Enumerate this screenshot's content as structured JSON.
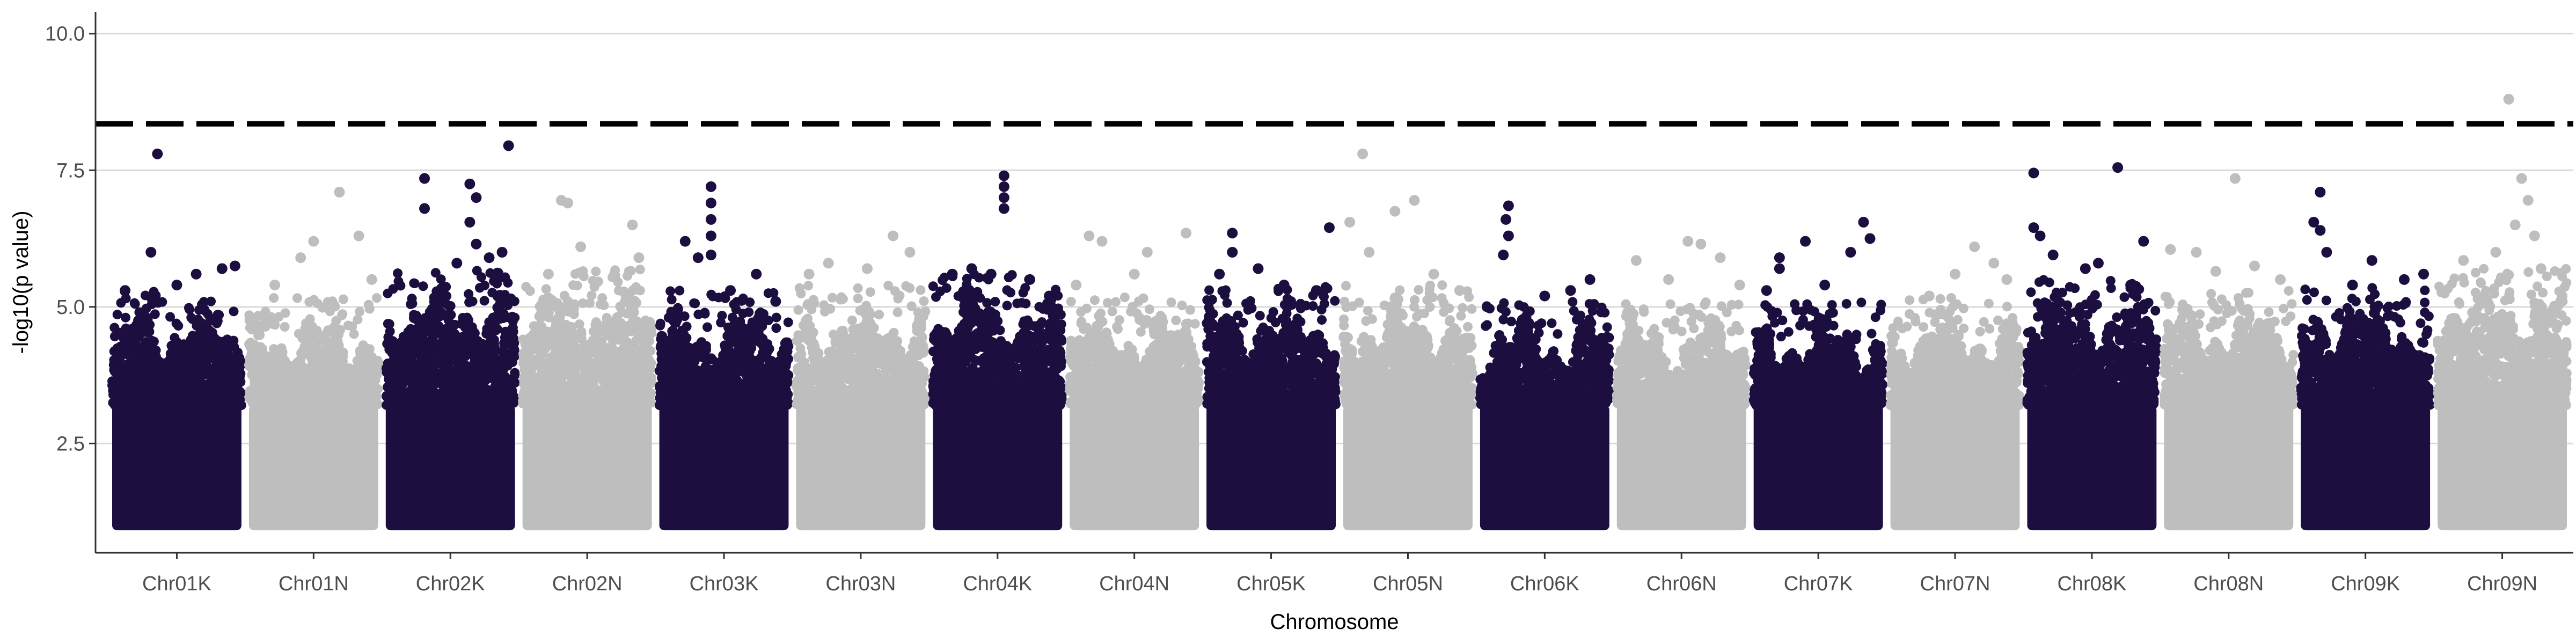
{
  "chart_data": {
    "type": "scatter",
    "title": "",
    "xlabel": "Chromosome",
    "ylabel": "-log10(p value)",
    "ylim": [
      0.5,
      10.4
    ],
    "yticks": [
      2.5,
      5.0,
      7.5,
      10.0
    ],
    "ytick_labels": [
      "2.5",
      "5.0",
      "7.5",
      "10.0"
    ],
    "threshold": 8.35,
    "threshold_style": "dashed",
    "grid": "horizontal-major",
    "legend": "none",
    "colors": {
      "odd_chromosome": "#1c0f40",
      "even_chromosome": "#bebebe",
      "threshold_line": "#000000",
      "grid": "#d9d9d9",
      "axis": "#333333"
    },
    "categories": [
      "Chr01K",
      "Chr01N",
      "Chr02K",
      "Chr02N",
      "Chr03K",
      "Chr03N",
      "Chr04K",
      "Chr04N",
      "Chr05K",
      "Chr05N",
      "Chr06K",
      "Chr06N",
      "Chr07K",
      "Chr07N",
      "Chr08K",
      "Chr08N",
      "Chr09K",
      "Chr09N"
    ],
    "chromosomes": [
      {
        "name": "Chr01K",
        "color_group": "dark",
        "bulk_top": 4.5,
        "max": 7.8,
        "peaks": [
          [
            0.35,
            7.8
          ],
          [
            0.3,
            6.0
          ],
          [
            0.85,
            5.7
          ],
          [
            0.65,
            5.6
          ],
          [
            0.1,
            5.3
          ],
          [
            0.5,
            5.4
          ],
          [
            0.95,
            5.75
          ]
        ]
      },
      {
        "name": "Chr01N",
        "color_group": "light",
        "bulk_top": 4.4,
        "max": 7.1,
        "peaks": [
          [
            0.7,
            7.1
          ],
          [
            0.85,
            6.3
          ],
          [
            0.5,
            6.2
          ],
          [
            0.4,
            5.9
          ],
          [
            0.2,
            5.4
          ],
          [
            0.95,
            5.5
          ]
        ]
      },
      {
        "name": "Chr02K",
        "color_group": "dark",
        "bulk_top": 4.9,
        "max": 7.95,
        "peaks": [
          [
            0.95,
            7.95
          ],
          [
            0.3,
            7.35
          ],
          [
            0.65,
            7.25
          ],
          [
            0.7,
            7.0
          ],
          [
            0.3,
            6.8
          ],
          [
            0.65,
            6.55
          ],
          [
            0.7,
            6.15
          ],
          [
            0.9,
            6.0
          ],
          [
            0.55,
            5.8
          ],
          [
            0.8,
            5.9
          ]
        ]
      },
      {
        "name": "Chr02N",
        "color_group": "light",
        "bulk_top": 4.9,
        "max": 6.95,
        "peaks": [
          [
            0.3,
            6.95
          ],
          [
            0.35,
            6.9
          ],
          [
            0.85,
            6.5
          ],
          [
            0.45,
            6.1
          ],
          [
            0.9,
            5.9
          ],
          [
            0.2,
            5.6
          ]
        ]
      },
      {
        "name": "Chr03K",
        "color_group": "dark",
        "bulk_top": 4.5,
        "max": 7.2,
        "peaks": [
          [
            0.4,
            7.2
          ],
          [
            0.4,
            6.9
          ],
          [
            0.4,
            6.6
          ],
          [
            0.2,
            6.2
          ],
          [
            0.4,
            6.3
          ],
          [
            0.3,
            5.9
          ],
          [
            0.75,
            5.6
          ],
          [
            0.4,
            5.95
          ],
          [
            0.55,
            5.3
          ],
          [
            0.9,
            5.1
          ]
        ]
      },
      {
        "name": "Chr03N",
        "color_group": "light",
        "bulk_top": 4.6,
        "max": 6.3,
        "peaks": [
          [
            0.75,
            6.3
          ],
          [
            0.88,
            6.0
          ],
          [
            0.25,
            5.8
          ],
          [
            0.55,
            5.7
          ],
          [
            0.1,
            5.6
          ]
        ]
      },
      {
        "name": "Chr04K",
        "color_group": "dark",
        "bulk_top": 4.8,
        "max": 7.4,
        "peaks": [
          [
            0.55,
            7.4
          ],
          [
            0.55,
            7.2
          ],
          [
            0.55,
            7.0
          ],
          [
            0.55,
            6.8
          ],
          [
            0.3,
            5.7
          ],
          [
            0.15,
            5.6
          ],
          [
            0.75,
            5.5
          ],
          [
            0.45,
            5.6
          ],
          [
            0.9,
            5.2
          ]
        ]
      },
      {
        "name": "Chr04N",
        "color_group": "light",
        "bulk_top": 4.4,
        "max": 6.35,
        "peaks": [
          [
            0.9,
            6.35
          ],
          [
            0.15,
            6.3
          ],
          [
            0.25,
            6.2
          ],
          [
            0.6,
            6.0
          ],
          [
            0.5,
            5.6
          ],
          [
            0.05,
            5.4
          ]
        ]
      },
      {
        "name": "Chr05K",
        "color_group": "dark",
        "bulk_top": 4.6,
        "max": 6.45,
        "peaks": [
          [
            0.95,
            6.45
          ],
          [
            0.2,
            6.35
          ],
          [
            0.2,
            6.0
          ],
          [
            0.4,
            5.7
          ],
          [
            0.6,
            5.4
          ],
          [
            0.1,
            5.6
          ],
          [
            0.85,
            5.3
          ]
        ]
      },
      {
        "name": "Chr05N",
        "color_group": "light",
        "bulk_top": 4.6,
        "max": 7.8,
        "peaks": [
          [
            0.15,
            7.8
          ],
          [
            0.55,
            6.95
          ],
          [
            0.4,
            6.75
          ],
          [
            0.05,
            6.55
          ],
          [
            0.2,
            6.0
          ],
          [
            0.7,
            5.6
          ],
          [
            0.9,
            5.3
          ]
        ]
      },
      {
        "name": "Chr06K",
        "color_group": "dark",
        "bulk_top": 4.3,
        "max": 6.85,
        "peaks": [
          [
            0.22,
            6.85
          ],
          [
            0.2,
            6.6
          ],
          [
            0.22,
            6.3
          ],
          [
            0.18,
            5.95
          ],
          [
            0.85,
            5.5
          ],
          [
            0.5,
            5.2
          ],
          [
            0.7,
            5.3
          ]
        ]
      },
      {
        "name": "Chr06N",
        "color_group": "light",
        "bulk_top": 4.3,
        "max": 6.2,
        "peaks": [
          [
            0.55,
            6.2
          ],
          [
            0.65,
            6.15
          ],
          [
            0.15,
            5.85
          ],
          [
            0.8,
            5.9
          ],
          [
            0.4,
            5.5
          ],
          [
            0.95,
            5.4
          ]
        ]
      },
      {
        "name": "Chr07K",
        "color_group": "dark",
        "bulk_top": 4.3,
        "max": 6.55,
        "peaks": [
          [
            0.85,
            6.55
          ],
          [
            0.9,
            6.25
          ],
          [
            0.4,
            6.2
          ],
          [
            0.75,
            6.0
          ],
          [
            0.2,
            5.9
          ],
          [
            0.2,
            5.7
          ],
          [
            0.55,
            5.4
          ],
          [
            0.1,
            5.3
          ]
        ]
      },
      {
        "name": "Chr07N",
        "color_group": "light",
        "bulk_top": 4.4,
        "max": 6.1,
        "peaks": [
          [
            0.65,
            6.1
          ],
          [
            0.8,
            5.8
          ],
          [
            0.5,
            5.6
          ],
          [
            0.9,
            5.5
          ],
          [
            0.3,
            5.2
          ]
        ]
      },
      {
        "name": "Chr08K",
        "color_group": "dark",
        "bulk_top": 4.7,
        "max": 7.55,
        "peaks": [
          [
            0.7,
            7.55
          ],
          [
            0.05,
            7.45
          ],
          [
            0.05,
            6.45
          ],
          [
            0.1,
            6.3
          ],
          [
            0.2,
            5.95
          ],
          [
            0.9,
            6.2
          ],
          [
            0.55,
            5.8
          ],
          [
            0.45,
            5.7
          ],
          [
            0.8,
            5.4
          ]
        ]
      },
      {
        "name": "Chr08N",
        "color_group": "light",
        "bulk_top": 4.5,
        "max": 7.35,
        "peaks": [
          [
            0.55,
            7.35
          ],
          [
            0.05,
            6.05
          ],
          [
            0.25,
            6.0
          ],
          [
            0.7,
            5.75
          ],
          [
            0.4,
            5.65
          ],
          [
            0.9,
            5.5
          ]
        ]
      },
      {
        "name": "Chr09K",
        "color_group": "dark",
        "bulk_top": 4.6,
        "max": 7.1,
        "peaks": [
          [
            0.1,
            6.55
          ],
          [
            0.15,
            7.1
          ],
          [
            0.15,
            6.4
          ],
          [
            0.2,
            6.0
          ],
          [
            0.55,
            5.85
          ],
          [
            0.8,
            5.5
          ],
          [
            0.4,
            5.4
          ],
          [
            0.95,
            5.6
          ]
        ]
      },
      {
        "name": "Chr09N",
        "color_group": "light",
        "bulk_top": 4.9,
        "max": 8.8,
        "peaks": [
          [
            0.55,
            8.8
          ],
          [
            0.65,
            7.35
          ],
          [
            0.7,
            6.95
          ],
          [
            0.6,
            6.5
          ],
          [
            0.75,
            6.3
          ],
          [
            0.2,
            5.85
          ],
          [
            0.45,
            6.0
          ],
          [
            0.8,
            5.7
          ]
        ]
      }
    ]
  }
}
